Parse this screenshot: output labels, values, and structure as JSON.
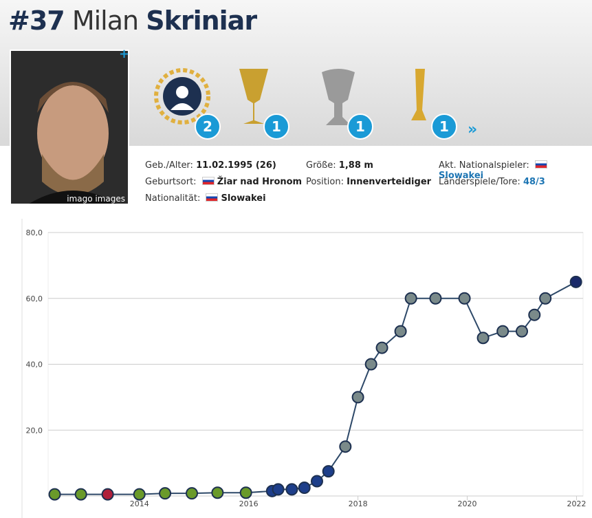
{
  "header": {
    "number": "#37",
    "first_name": "Milan",
    "last_name": "Skriniar"
  },
  "photo_caption": "imago images",
  "badges": [
    "2",
    "1",
    "1",
    "1"
  ],
  "info": {
    "col1": [
      {
        "label": "Geb./Alter:",
        "value": "11.02.1995 (26)"
      },
      {
        "label": "Geburtsort:",
        "value": "Žiar nad Hronom"
      },
      {
        "label": "Nationalität:",
        "value": "Slowakei"
      }
    ],
    "col2": [
      {
        "label": "Größe:",
        "value": "1,88 m"
      },
      {
        "label": "Position:",
        "value": "Innenverteidiger"
      }
    ],
    "col3": [
      {
        "label": "Akt. Nationalspieler:",
        "value": "Slowakei"
      },
      {
        "label": "Länderspiele/Tore:",
        "value": "48/3"
      }
    ]
  },
  "chart_data": {
    "type": "line",
    "series": [
      {
        "color": "#2d4868",
        "x": [
          2012.45,
          2012.93,
          2013.42,
          2014.0,
          2014.47,
          2014.96,
          2015.43,
          2015.95,
          2016.43,
          2016.54,
          2016.79,
          2017.02,
          2017.25,
          2017.46,
          2017.77,
          2018.0,
          2018.24,
          2018.44,
          2018.78,
          2018.97,
          2019.42,
          2019.95,
          2020.29,
          2020.65,
          2021.0,
          2021.23,
          2021.43,
          2021.99
        ],
        "values": [
          0.5,
          0.5,
          0.5,
          0.5,
          0.8,
          0.8,
          1,
          1,
          1.5,
          2,
          2,
          2.5,
          4.5,
          7.5,
          15,
          30,
          40,
          45,
          50,
          60,
          60,
          60,
          48,
          50,
          50,
          55,
          60,
          65
        ],
        "marker_colors": [
          "#6a9a2a",
          "#6a9a2a",
          "#b0203a",
          "#6a9a2a",
          "#6a9a2a",
          "#6a9a2a",
          "#6a9a2a",
          "#6a9a2a",
          "#1d3e8a",
          "#1d3e8a",
          "#1d3e8a",
          "#1d3e8a",
          "#1d3e8a",
          "#1d3e8a",
          "#7a8a8a",
          "#7a8a8a",
          "#7a8a8a",
          "#7a8a8a",
          "#7a8a8a",
          "#7a8a8a",
          "#7a8a8a",
          "#7a8a8a",
          "#7a8a8a",
          "#7a8a8a",
          "#7a8a8a",
          "#7a8a8a",
          "#7a8a8a",
          "#1a2a6a"
        ]
      }
    ],
    "xlim": [
      2012.33,
      2022.12
    ],
    "xticks": [
      2014,
      2016,
      2018,
      2020,
      2022
    ],
    "ylim": [
      0,
      80
    ],
    "yticks": [
      {
        "value": 20,
        "label": "20,0"
      },
      {
        "value": 40,
        "label": "40,0"
      },
      {
        "value": 60,
        "label": "60,0"
      },
      {
        "value": 80,
        "label": "80,0"
      }
    ],
    "grid": true
  }
}
